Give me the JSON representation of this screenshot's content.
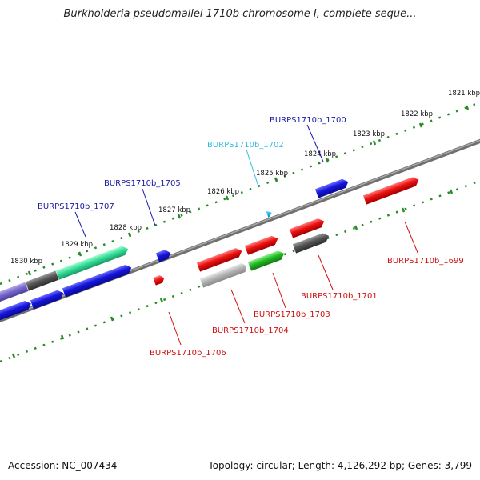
{
  "title": "Burkholderia pseudomallei 1710b chromosome I, complete seque...",
  "footer": {
    "accession": "Accession: NC_007434",
    "summary": "Topology: circular; Length: 4,126,292 bp; Genes: 3,799"
  },
  "colors": {
    "gene_label_forward": "#1a1aa6",
    "gene_label_reverse": "#cc1111",
    "gene_label_highlight": "#33bbdd",
    "ruler": "#2a8a2a",
    "backbone": "#808080",
    "blue": "#1515dd",
    "red": "#ee1111",
    "green": "#22bb22",
    "dark_gray": "#555555",
    "light_gray": "#b5b5b5",
    "aqua_green": "#33dd99",
    "purple": "#7766cc",
    "cyan": "#22bbee"
  },
  "ruler_ticks": [
    "1821 kbp",
    "1822 kbp",
    "1823 kbp",
    "1824 kbp",
    "1825 kbp",
    "1826 kbp",
    "1827 kbp",
    "1828 kbp",
    "1829 kbp",
    "1830 kbp"
  ],
  "gene_labels": {
    "g1700": "BURPS1710b_1700",
    "g1702": "BURPS1710b_1702",
    "g1705": "BURPS1710b_1705",
    "g1707": "BURPS1710b_1707",
    "g1699": "BURPS1710b_1699",
    "g1701": "BURPS1710b_1701",
    "g1703": "BURPS1710b_1703",
    "g1704": "BURPS1710b_1704",
    "g1706": "BURPS1710b_1706"
  }
}
